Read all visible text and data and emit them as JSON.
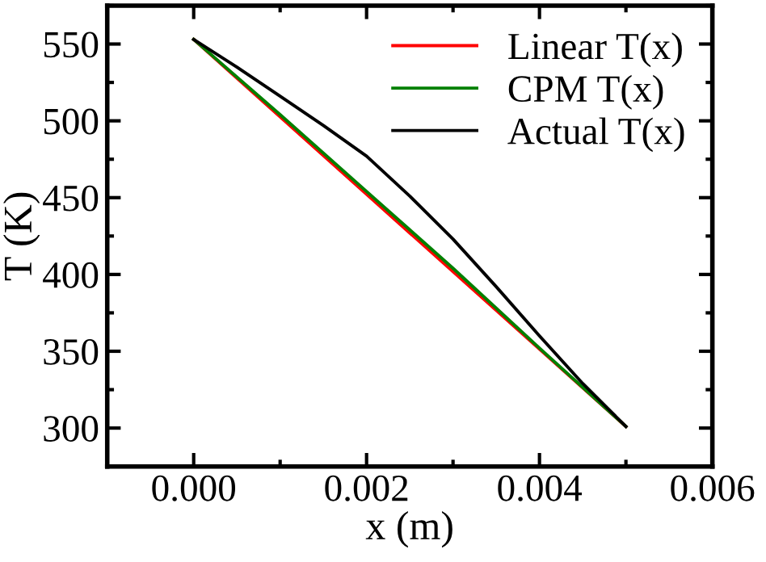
{
  "chart_data": {
    "type": "line",
    "xlabel": "x (m)",
    "ylabel": "T (K)",
    "xlim": [
      -0.001,
      0.006
    ],
    "ylim": [
      275,
      575
    ],
    "xticks": [
      {
        "value": 0,
        "label": "0.000"
      },
      {
        "value": 0.002,
        "label": "0.002"
      },
      {
        "value": 0.004,
        "label": "0.004"
      },
      {
        "value": 0.006,
        "label": "0.006"
      }
    ],
    "yticks": [
      300,
      350,
      400,
      450,
      500,
      550
    ],
    "legend": "top right",
    "grid": false,
    "marker": "none",
    "line_style": "solid",
    "series": [
      {
        "name": "Linear T(x)",
        "color": "#ff0000",
        "x": [
          0,
          0.005
        ],
        "values": [
          553,
          301
        ]
      },
      {
        "name": "CPM T(x)",
        "color": "#008000",
        "x": [
          0,
          0.001,
          0.002,
          0.003,
          0.004,
          0.005
        ],
        "values": [
          553,
          504,
          454,
          404,
          352,
          301
        ]
      },
      {
        "name": "Actual T(x)",
        "color": "#000000",
        "x": [
          0,
          0.0005,
          0.001,
          0.0015,
          0.002,
          0.0025,
          0.003,
          0.0035,
          0.004,
          0.0045,
          0.005
        ],
        "values": [
          553,
          535,
          516,
          497,
          477,
          451,
          423,
          392,
          360,
          329,
          301
        ]
      }
    ]
  }
}
